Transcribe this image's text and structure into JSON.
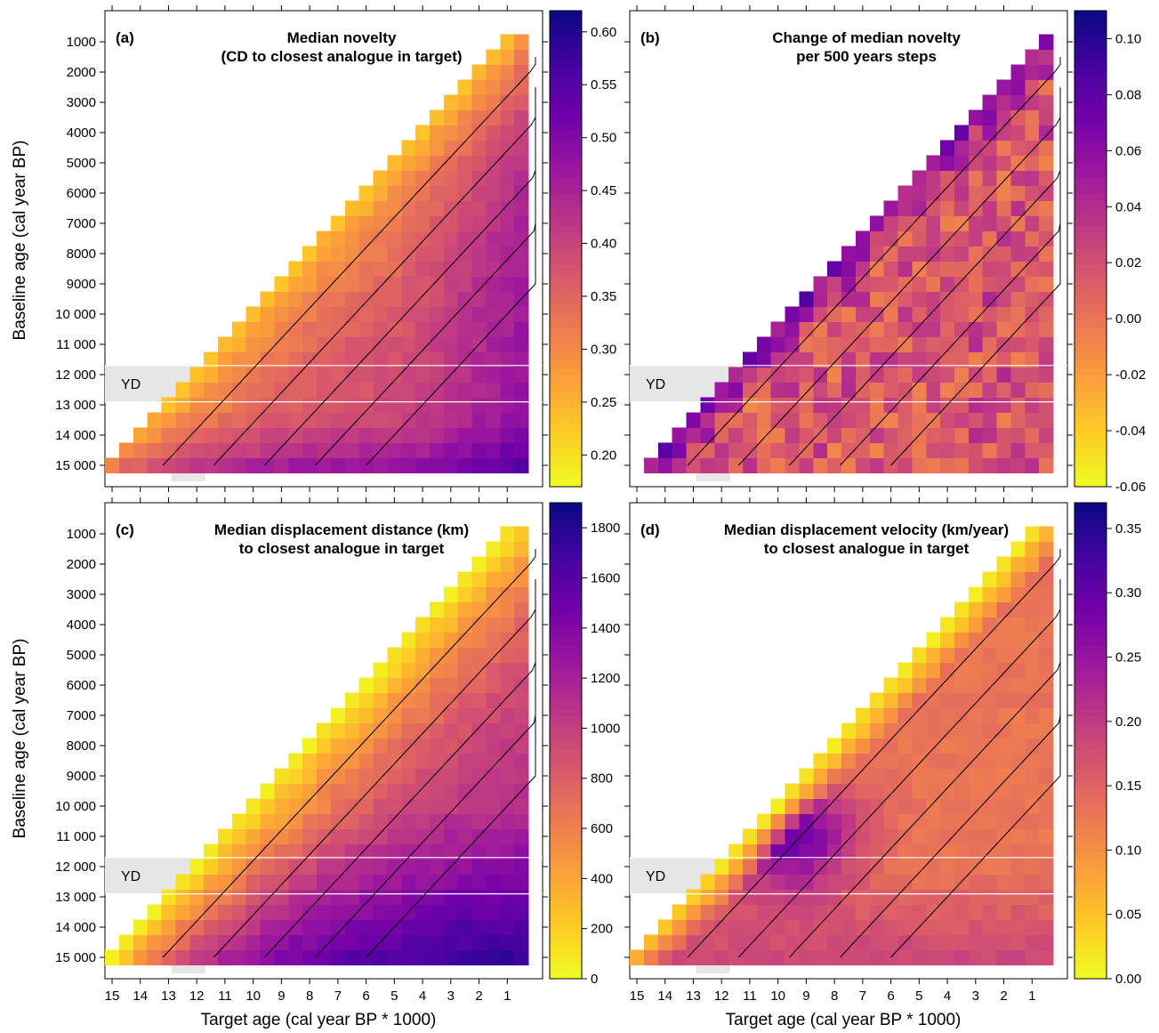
{
  "axes": {
    "ylabel": "Baseline age (cal year BP)",
    "xlabel": "Target age (cal year BP * 1000)",
    "y_ticks": [
      "1000",
      "2000",
      "3000",
      "4000",
      "5000",
      "6000",
      "7000",
      "8000",
      "9000",
      "10 000",
      "11 000",
      "12 000",
      "13 000",
      "14 000",
      "15 000"
    ],
    "x_ticks": [
      "15",
      "14",
      "13",
      "12",
      "11",
      "10",
      "9",
      "8",
      "7",
      "6",
      "5",
      "4",
      "3",
      "2",
      "1"
    ]
  },
  "yd_label": "YD",
  "colors": {
    "scale": [
      "#f0f921",
      "#fdca26",
      "#fb9f3a",
      "#ed7953",
      "#d8576b",
      "#bd3786",
      "#9c179e",
      "#7201a8",
      "#46039f",
      "#0d0887"
    ],
    "yd_band": "#e6e6e6"
  },
  "chart_data": [
    {
      "type": "heatmap",
      "panel": "(a)",
      "title_lines": [
        "Median novelty",
        "(CD to closest analogue in target)"
      ],
      "colorbar_ticks": [
        "0.20",
        "0.25",
        "0.30",
        "0.35",
        "0.40",
        "0.45",
        "0.50",
        "0.55",
        "0.60"
      ],
      "colorbar_values": [
        0.2,
        0.25,
        0.3,
        0.35,
        0.4,
        0.45,
        0.5,
        0.55,
        0.6
      ],
      "vmin": 0.17,
      "vmax": 0.62,
      "target_range_kyr": [
        15,
        0
      ],
      "baseline_range_yr": [
        15000,
        500
      ],
      "yd_band_yr": [
        11700,
        12900
      ]
    },
    {
      "type": "heatmap",
      "panel": "(b)",
      "title_lines": [
        "Change of median novelty",
        "per 500 years steps"
      ],
      "colorbar_ticks": [
        "-0.06",
        "-0.04",
        "-0.02",
        "0.00",
        "0.02",
        "0.04",
        "0.06",
        "0.08",
        "0.10"
      ],
      "colorbar_values": [
        -0.06,
        -0.04,
        -0.02,
        0.0,
        0.02,
        0.04,
        0.06,
        0.08,
        0.1
      ],
      "vmin": -0.06,
      "vmax": 0.11,
      "target_range_kyr": [
        15,
        0
      ],
      "baseline_range_yr": [
        15000,
        500
      ],
      "yd_band_yr": [
        11700,
        12900
      ]
    },
    {
      "type": "heatmap",
      "panel": "(c)",
      "title_lines": [
        "Median displacement distance (km)",
        "to closest analogue in target"
      ],
      "colorbar_ticks": [
        "0",
        "200",
        "400",
        "600",
        "800",
        "1000",
        "1200",
        "1400",
        "1600",
        "1800"
      ],
      "colorbar_values": [
        0,
        200,
        400,
        600,
        800,
        1000,
        1200,
        1400,
        1600,
        1800
      ],
      "vmin": 0,
      "vmax": 1900,
      "target_range_kyr": [
        15,
        0
      ],
      "baseline_range_yr": [
        15000,
        500
      ],
      "yd_band_yr": [
        11700,
        12900
      ]
    },
    {
      "type": "heatmap",
      "panel": "(d)",
      "title_lines": [
        "Median displacement velocity (km/year)",
        "to closest analogue in target"
      ],
      "colorbar_ticks": [
        "0.00",
        "0.05",
        "0.10",
        "0.15",
        "0.20",
        "0.25",
        "0.30",
        "0.35"
      ],
      "colorbar_values": [
        0.0,
        0.05,
        0.1,
        0.15,
        0.2,
        0.25,
        0.3,
        0.35
      ],
      "vmin": 0,
      "vmax": 0.37,
      "target_range_kyr": [
        15,
        0
      ],
      "baseline_range_yr": [
        15000,
        500
      ],
      "yd_band_yr": [
        11700,
        12900
      ]
    }
  ]
}
